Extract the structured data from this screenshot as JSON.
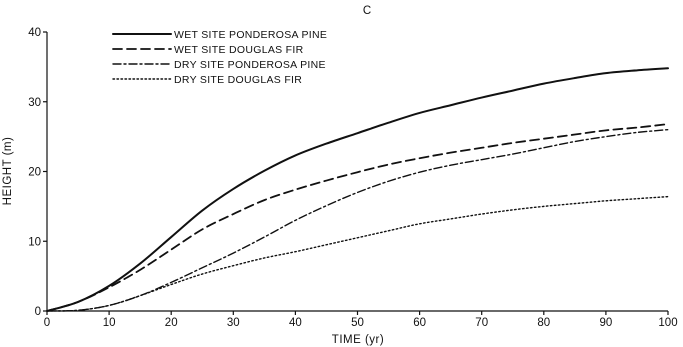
{
  "chart_data": {
    "type": "line",
    "title": "",
    "panel_label": "C",
    "xlabel": "TIME (yr)",
    "ylabel": "HEIGHT (m)",
    "xlim": [
      0,
      100
    ],
    "ylim": [
      0,
      40
    ],
    "xticks": [
      0,
      10,
      20,
      30,
      40,
      50,
      60,
      70,
      80,
      90,
      100
    ],
    "yticks": [
      0,
      10,
      20,
      30,
      40
    ],
    "grid": false,
    "legend_position": "top-left",
    "series": [
      {
        "name": "WET SITE PONDEROSA PINE",
        "style": "solid",
        "x": [
          0,
          5,
          10,
          15,
          20,
          25,
          30,
          35,
          40,
          45,
          50,
          55,
          60,
          65,
          70,
          75,
          80,
          85,
          90,
          95,
          100
        ],
        "y": [
          0,
          1.3,
          3.6,
          6.8,
          10.6,
          14.4,
          17.5,
          20.1,
          22.3,
          24.0,
          25.5,
          27.0,
          28.4,
          29.5,
          30.6,
          31.6,
          32.6,
          33.4,
          34.1,
          34.5,
          34.8
        ]
      },
      {
        "name": "WET SITE DOUGLAS FIR",
        "style": "dashed",
        "x": [
          0,
          5,
          10,
          15,
          20,
          25,
          30,
          35,
          40,
          45,
          50,
          55,
          60,
          65,
          70,
          75,
          80,
          85,
          90,
          95,
          100
        ],
        "y": [
          0,
          1.3,
          3.4,
          5.9,
          8.8,
          11.7,
          13.9,
          15.9,
          17.4,
          18.7,
          19.9,
          21.0,
          21.9,
          22.7,
          23.4,
          24.1,
          24.7,
          25.3,
          25.9,
          26.3,
          26.8
        ]
      },
      {
        "name": "DRY SITE PONDEROSA PINE",
        "style": "dashdot",
        "x": [
          0,
          5,
          10,
          15,
          20,
          25,
          30,
          35,
          40,
          45,
          50,
          55,
          60,
          65,
          70,
          75,
          80,
          85,
          90,
          95,
          100
        ],
        "y": [
          0,
          0.1,
          0.8,
          2.2,
          4.1,
          6.2,
          8.3,
          10.6,
          13.0,
          15.1,
          17.0,
          18.6,
          19.9,
          20.9,
          21.7,
          22.5,
          23.4,
          24.3,
          25.0,
          25.6,
          26.0
        ]
      },
      {
        "name": "DRY SITE DOUGLAS FIR",
        "style": "dotted",
        "x": [
          0,
          5,
          10,
          15,
          20,
          25,
          30,
          35,
          40,
          45,
          50,
          55,
          60,
          65,
          70,
          75,
          80,
          85,
          90,
          95,
          100
        ],
        "y": [
          0,
          0.1,
          0.8,
          2.2,
          3.8,
          5.3,
          6.5,
          7.6,
          8.5,
          9.5,
          10.5,
          11.5,
          12.5,
          13.2,
          13.9,
          14.5,
          15.0,
          15.4,
          15.8,
          16.1,
          16.4
        ]
      }
    ]
  }
}
